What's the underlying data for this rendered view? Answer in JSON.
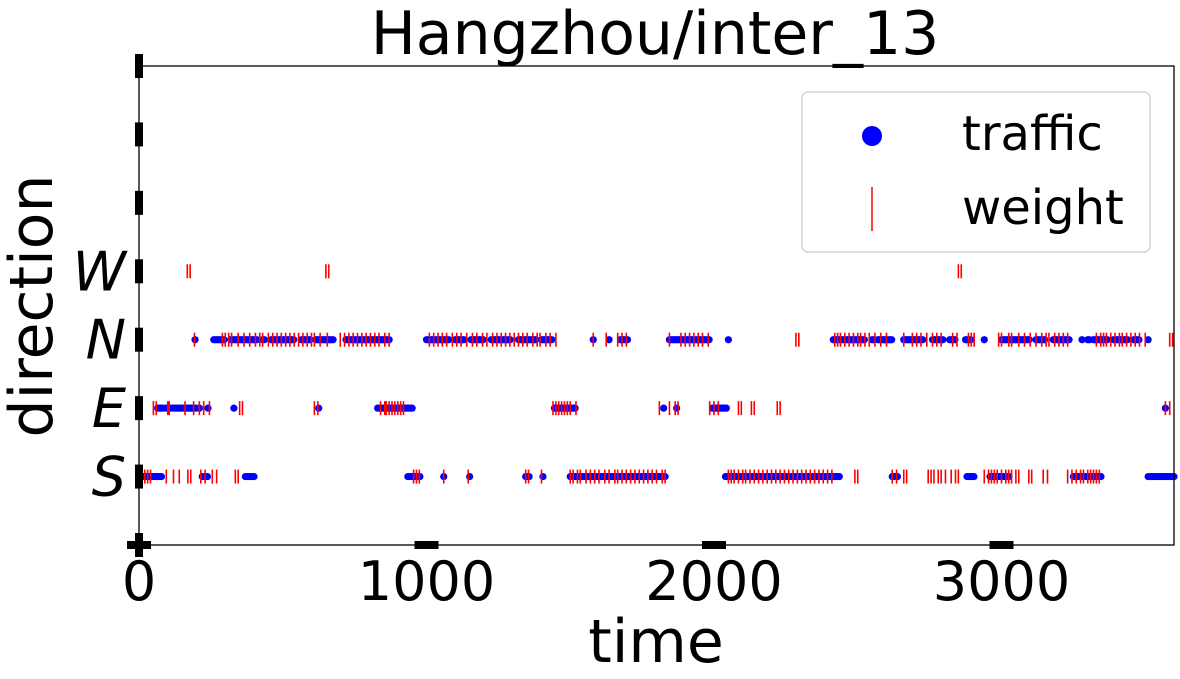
{
  "chart_data": {
    "type": "scatter",
    "title": "Hangzhou/inter_13",
    "xlabel": "time",
    "ylabel": "direction",
    "xlim": [
      0,
      3600
    ],
    "ylim": [
      -1,
      6
    ],
    "xticks": [
      0,
      1000,
      2000,
      3000
    ],
    "xtick_labels": [
      "0",
      "1000",
      "2000",
      "3000"
    ],
    "yticks": [
      0,
      1,
      2,
      3
    ],
    "ytick_labels": [
      "S",
      "E",
      "N",
      "W"
    ],
    "legend": {
      "placement": "upper-right",
      "entries": [
        "traffic",
        "weight"
      ]
    },
    "grid": false,
    "colors": {
      "traffic": "#0000ff",
      "weight": "#ff0000"
    },
    "series": [
      {
        "name": "traffic",
        "marker": "circle",
        "points": {
          "S": [
            [
              0,
              80
            ],
            [
              220,
              240
            ],
            [
              370,
              400
            ],
            [
              935,
              980
            ],
            [
              1060
            ],
            [
              1150
            ],
            [
              1345,
              1360
            ],
            [
              1405
            ],
            [
              1500,
              1830
            ],
            [
              2040,
              2440
            ],
            [
              2620,
              2640
            ],
            [
              2880,
              2905
            ],
            [
              2960,
              3030
            ],
            [
              3250,
              3350
            ],
            [
              3510,
              3600
            ]
          ],
          "E": [
            [
              65,
              85
            ],
            [
              95,
              100
            ],
            [
              110,
              110
            ],
            [
              120,
              200
            ],
            [
              210,
              215
            ],
            [
              240
            ],
            [
              330
            ],
            [
              625
            ],
            [
              830,
              950
            ],
            [
              1445,
              1520
            ],
            [
              1825
            ],
            [
              1870
            ],
            [
              1995,
              2045
            ],
            [
              3570
            ]
          ],
          "N": [
            [
              195
            ],
            [
              260,
              300
            ],
            [
              320,
              410
            ],
            [
              430,
              440
            ],
            [
              460,
              540
            ],
            [
              565,
              600
            ],
            [
              615,
              680
            ],
            [
              720,
              870
            ],
            [
              1000,
              1080
            ],
            [
              1100,
              1130
            ],
            [
              1155,
              1200
            ],
            [
              1225,
              1295
            ],
            [
              1320,
              1380
            ],
            [
              1400,
              1440
            ],
            [
              1580
            ],
            [
              1635
            ],
            [
              1675,
              1700
            ],
            [
              1845,
              1985
            ],
            [
              2050
            ],
            [
              2415,
              2525
            ],
            [
              2550,
              2560
            ],
            [
              2570,
              2620
            ],
            [
              2660,
              2730
            ],
            [
              2760,
              2800
            ],
            [
              2820,
              2840
            ],
            [
              2875,
              2895
            ],
            [
              2940
            ],
            [
              3000,
              3100
            ],
            [
              3120,
              3150
            ],
            [
              3180,
              3200
            ],
            [
              3205,
              3240
            ],
            [
              3280
            ],
            [
              3300,
              3310
            ],
            [
              3320,
              3370
            ],
            [
              3390,
              3440
            ],
            [
              3460,
              3480
            ],
            [
              3510
            ]
          ]
        }
      },
      {
        "name": "weight",
        "marker": "vline",
        "points": {
          "W": [
            168,
            178,
            650,
            660,
            2850,
            2860
          ],
          "N": [
            193,
            290,
            300,
            312,
            322,
            345,
            365,
            385,
            405,
            420,
            430,
            450,
            465,
            480,
            495,
            510,
            525,
            540,
            555,
            570,
            585,
            600,
            610,
            630,
            655,
            700,
            715,
            730,
            745,
            760,
            775,
            790,
            805,
            820,
            835,
            855,
            870,
            1010,
            1025,
            1040,
            1055,
            1070,
            1090,
            1105,
            1120,
            1140,
            1160,
            1175,
            1195,
            1210,
            1230,
            1245,
            1260,
            1275,
            1290,
            1305,
            1320,
            1335,
            1350,
            1370,
            1385,
            1395,
            1415,
            1430,
            1450,
            1580,
            1625,
            1665,
            1680,
            1695,
            1845,
            1885,
            1900,
            1915,
            1930,
            1945,
            1960,
            1980,
            2285,
            2295,
            2420,
            2430,
            2440,
            2455,
            2470,
            2485,
            2500,
            2510,
            2525,
            2540,
            2560,
            2580,
            2600,
            2660,
            2690,
            2705,
            2720,
            2740,
            2760,
            2775,
            2790,
            2830,
            2845,
            2885,
            2895,
            2905,
            2990,
            3000,
            3025,
            3035,
            3060,
            3080,
            3100,
            3120,
            3140,
            3155,
            3165,
            3185,
            3200,
            3215,
            3230,
            3330,
            3345,
            3355,
            3365,
            3380,
            3395,
            3410,
            3420,
            3435,
            3450,
            3465,
            3480,
            3500,
            3585,
            3595
          ],
          "E": [
            50,
            60,
            100,
            105,
            160,
            190,
            210,
            225,
            245,
            350,
            360,
            610,
            622,
            840,
            855,
            860,
            870,
            880,
            890,
            900,
            910,
            920,
            1440,
            1450,
            1460,
            1470,
            1480,
            1490,
            1500,
            1520,
            1810,
            1845,
            1865,
            1875,
            1985,
            2000,
            2015,
            2085,
            2095,
            2130,
            2140,
            2220,
            2230,
            3570,
            3585
          ],
          "S": [
            20,
            30,
            40,
            95,
            120,
            140,
            170,
            180,
            215,
            230,
            255,
            270,
            335,
            345,
            955,
            965,
            975,
            1060,
            1145,
            1345,
            1355,
            1400,
            1500,
            1510,
            1525,
            1535,
            1555,
            1570,
            1585,
            1600,
            1620,
            1635,
            1655,
            1665,
            1680,
            1695,
            1710,
            1725,
            1740,
            1755,
            1770,
            1785,
            1800,
            1820,
            1830,
            2050,
            2060,
            2070,
            2085,
            2100,
            2110,
            2125,
            2140,
            2155,
            2170,
            2185,
            2200,
            2215,
            2230,
            2245,
            2260,
            2275,
            2290,
            2305,
            2320,
            2335,
            2350,
            2365,
            2380,
            2395,
            2410,
            2490,
            2500,
            2620,
            2635,
            2660,
            2670,
            2745,
            2755,
            2765,
            2780,
            2790,
            2805,
            2825,
            2840,
            2850,
            2940,
            2955,
            2965,
            2975,
            2985,
            3000,
            3015,
            3025,
            3035,
            3050,
            3060,
            3095,
            3105,
            3145,
            3160,
            3230,
            3245,
            3260,
            3275,
            3285,
            3300,
            3310,
            3320,
            3330,
            3340
          ]
        }
      }
    ]
  }
}
